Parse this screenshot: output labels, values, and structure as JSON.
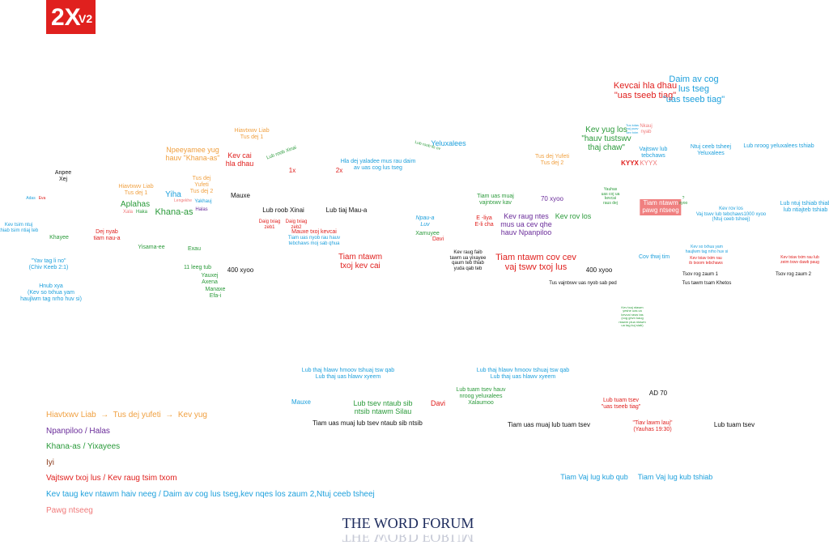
{
  "logo": {
    "title": "2X",
    "version": "V2"
  },
  "labels": [
    "Kevcai hla dhau\n\"uas tseeb tiag\"",
    "Daim av cog\nlus tseg\n\"uas tseeb tiag\"",
    "Hiavtxwv Liab\nTus dej 1",
    "Npeeyamee yug\nhauv \"Khana-as\"",
    "Kev cai\nhla dhau",
    "Lub roob Xinai",
    "Yeluxalees",
    "Lub roob lis ov",
    "Kev yug los\n\"hauv tustswv\nthaj chaw\"",
    "Tus kdas\nnuj yuav\nkev txim",
    "Nkauj\nnyab",
    "Vajtswv lub\ntebchaws",
    "Ntuj ceeb tsheej\nYeluxalees",
    "Lub nroog yeluxalees tshiab",
    "Hla dej yaladee mus rau daim\nav uas cog lus tseg",
    "1x",
    "2x",
    "Tus dej Yufeti\nTus dej 2",
    "KYYX",
    "KYYX",
    "Anpee\nXej",
    "Tus dej\nYufeti\nTus dej 2",
    "Hiavtxwv Liab\nTus dej 1",
    "Yiha",
    "Lengekhe",
    "Yakhauj",
    "Aplahas",
    "Mauxe",
    "Adas",
    "Eva",
    "Xala",
    "Haka",
    "Halas",
    "Khana-as",
    "Lub roob Xinai",
    "Lub tiaj Mau-a",
    "Tiam uas muaj\nvajntxwv kav",
    "70 xyoo",
    "Yauhas\nuas coj ua\nkevcai\nraus dej",
    "Tiam ntawm\npawg ntseeg",
    "?\nxyoo",
    "Kev rov los\nVaj tswv lub tebchaws1000 xyoo\n(Ntuj ceeb tsheej)",
    "Lub ntuj tshiab thiab\nlub ntiajteb tshiab",
    "Kev tsim ntuj\nthiab tsim ntiaj teb",
    "Dej nyab\ntiam nau-a",
    "Khayee",
    "Daig txiag\nzeb1",
    "Daig txiag\nzeb2",
    "Mauxe txoj kevcai",
    "Tiam uas nyob rau hauv\ntebchaws moj sab qhua",
    "Npau-a\nLuv",
    "E -liya\nE-li cha",
    "Kev raug ntes\nmus ua cev qhe\nhauv Npanpiloo",
    "Kev rov los",
    "Xamuyee",
    "Davi",
    "Yisama-ee",
    "Exau",
    "Kev raug faib\ntawm ua yixayee\nqaum teb thiab\nyuda qab teb",
    "Tiam ntawm\ntxoj kev cai",
    "Tiam ntawm cov cev\nvaj tswv txoj lus",
    "Kev so txhua yam\nhaujlwm tag nrho huv si",
    "Cov thwj tim",
    "Kev txiav txim rau\nib txoom tebchaws",
    "Kev txiav txim rau lub\nzeim txwv dawb paug",
    "\"Yav tag li no\"\n(Chiv Keeb 2:1)",
    "11 leeg tub",
    "Yauxej\nAxena",
    "Manaxe\nEfa-i",
    "400 xyoo",
    "400 xyoo",
    "Tsov rog zaum 1",
    "Tsov rog zaum 2",
    "Tus vajntxwv uas nyob sab ped",
    "Tus tawm tsam Khetos",
    "Hnub xya\n(Kev so txhua yam\nhaujlwm tag nrho huv si)",
    "Kev txaj ntawm\nyeshe uas ca\nkevcai raws tas\n(cog ghvn kaug\nntawm plua ntawm\nua tag kuj siab)",
    "Lub thaj hlawv hmoov tshuaj tsw qab\nLub thaj uas hlawv xyeem",
    "Lub thaj hlawv hmoov tshuaj tsw qab\nLub thaj uas hlawv xyeem",
    "Mauxe",
    "Lub tsev ntaub sib\nntsib ntawm Silau",
    "Davi",
    "Lub tuam tsev hauv\nnroog yeluxalees\nXalaumoo",
    "AD 70",
    "Lub tuam tsev\n\"uas tseeb tiag\"",
    "Tiam uas muaj lub tsev ntaub sib ntsib",
    "Tiam uas muaj lub tuam tsev",
    "\"Tiav lawm lauj\"\n(Yauhas 19:30)",
    "Lub tuam tsev",
    "Tiam Vaj lug kub qub",
    "Tiam Vaj lug kub tshiab"
  ],
  "legend": [
    "Hiavtxwv Liab  →  Tus dej yufeti  →  Kev yug",
    "Npanpiloo / Halas",
    "Khana-as / Yixayees",
    "Iyi",
    "Vajtswv txoj lus / Kev raug tsim txom",
    "Kev taug kev ntawm haiv neeg / Daim av cog lus tseg,kev nqes los zaum 2,Ntuj ceeb tsheej",
    "Pawg ntseeg"
  ],
  "footer": "THE WORD FORUM"
}
